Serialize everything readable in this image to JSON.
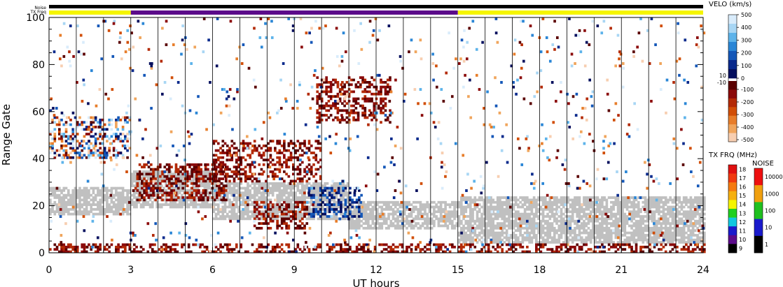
{
  "header": {
    "noise_label": "Noise",
    "txfreq_label": "TX Freq"
  },
  "colors": {
    "ground_scatter": "#c0c0c0",
    "txfreq_day": "#f5f500",
    "txfreq_night": "#5b0b8a",
    "noise_bar": "#000000"
  },
  "velocity_scale": {
    "title": "VELO (km/s)",
    "positive_ticks": [
      "500",
      "400",
      "300",
      "200",
      "100",
      "0"
    ],
    "zero_label_pos": "10",
    "zero_label_neg": "-10",
    "negative_ticks": [
      "-100",
      "-200",
      "-300",
      "-400",
      "-500"
    ],
    "positive_colors": [
      "#d9ecfb",
      "#a8d6f4",
      "#5db3ea",
      "#2a86d6",
      "#1457b8",
      "#0a2a8c",
      "#050f5e"
    ],
    "negative_colors": [
      "#5a0000",
      "#8b0a0a",
      "#b32a06",
      "#d14e07",
      "#e77d2a",
      "#f0a55c",
      "#f7ceb0"
    ]
  },
  "txfreq_scale": {
    "title": "TX FRQ (MHz)",
    "ticks": [
      "18",
      "17",
      "16",
      "15",
      "14",
      "13",
      "12",
      "11",
      "10",
      "9"
    ],
    "colors": [
      "#e01010",
      "#f03a10",
      "#f57a10",
      "#f5b010",
      "#f5f500",
      "#20d020",
      "#10c8e0",
      "#1a1acc",
      "#5b0b8a",
      "#000000"
    ]
  },
  "noise_scale": {
    "title": "NOISE",
    "ticks": [
      "10000",
      "1000",
      "100",
      "10",
      "1"
    ],
    "colors": [
      "#ee1010",
      "#f0a010",
      "#20c020",
      "#1a1acc",
      "#000000"
    ]
  },
  "chart_data": {
    "type": "heatmap",
    "title": "",
    "xlabel": "UT hours",
    "ylabel": "Range Gate",
    "xlim": [
      0,
      24
    ],
    "ylim": [
      0,
      100
    ],
    "x_ticks": [
      "0",
      "3",
      "6",
      "9",
      "12",
      "15",
      "18",
      "21",
      "24"
    ],
    "y_ticks": [
      "0",
      "20",
      "40",
      "60",
      "80",
      "100"
    ],
    "scan_boundaries_hours": [
      1,
      2,
      3,
      4,
      5,
      6,
      7,
      8,
      9,
      10,
      11,
      12,
      13,
      14,
      15,
      16,
      17,
      18,
      19,
      20,
      21,
      22,
      23
    ],
    "txfreq_segments": [
      {
        "start": 0,
        "end": 3,
        "mhz": 14
      },
      {
        "start": 3,
        "end": 15,
        "mhz": 10
      },
      {
        "start": 15,
        "end": 24,
        "mhz": 14
      }
    ],
    "ground_scatter_bands": [
      {
        "start": 0,
        "end": 3,
        "gate_low": 16,
        "gate_high": 28
      },
      {
        "start": 3,
        "end": 6,
        "gate_low": 19,
        "gate_high": 35
      },
      {
        "start": 6,
        "end": 11,
        "gate_low": 14,
        "gate_high": 30
      },
      {
        "start": 11,
        "end": 15,
        "gate_low": 10,
        "gate_high": 22
      },
      {
        "start": 15,
        "end": 24,
        "gate_low": 4,
        "gate_high": 24
      }
    ],
    "velocity_features": [
      {
        "name": "ionospheric scatter",
        "start": 0,
        "end": 3,
        "gate_low": 40,
        "gate_high": 58,
        "sign": "mixed"
      },
      {
        "name": "ionospheric scatter",
        "start": 3.2,
        "end": 6.5,
        "gate_low": 22,
        "gate_high": 38,
        "sign": "negative"
      },
      {
        "name": "ionospheric scatter",
        "start": 6,
        "end": 10,
        "gate_low": 30,
        "gate_high": 48,
        "sign": "negative"
      },
      {
        "name": "ionospheric scatter",
        "start": 7.5,
        "end": 9.5,
        "gate_low": 10,
        "gate_high": 22,
        "sign": "negative"
      },
      {
        "name": "ionospheric scatter",
        "start": 9.8,
        "end": 12.5,
        "gate_low": 55,
        "gate_high": 75,
        "sign": "negative"
      },
      {
        "name": "ionospheric scatter",
        "start": 9.5,
        "end": 11.5,
        "gate_low": 15,
        "gate_high": 28,
        "sign": "positive"
      },
      {
        "name": "near-range scatter",
        "start": 0,
        "end": 24,
        "gate_low": 0,
        "gate_high": 4,
        "sign": "negative"
      }
    ]
  }
}
